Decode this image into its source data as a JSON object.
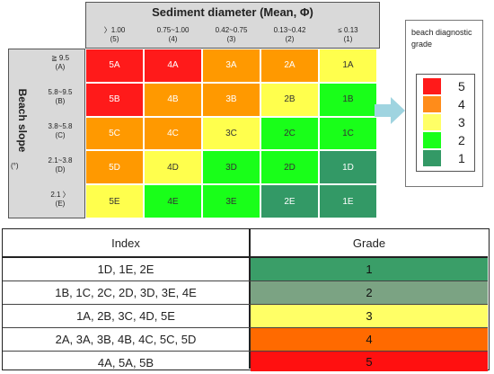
{
  "matrix": {
    "title": "Sediment diameter (Mean, Φ)",
    "side_title": "Beach slope",
    "side_unit": "(°)",
    "columns": [
      {
        "range": "〉1.00",
        "code": "(5)"
      },
      {
        "range": "0.75~1.00",
        "code": "(4)"
      },
      {
        "range": "0.42~0.75",
        "code": "(3)"
      },
      {
        "range": "0.13~0.42",
        "code": "(2)"
      },
      {
        "range": "≤ 0.13",
        "code": "(1)"
      }
    ],
    "rows": [
      {
        "range": "≧ 9.5",
        "code": "(A)",
        "cells": [
          "5A",
          "4A",
          "3A",
          "2A",
          "1A"
        ]
      },
      {
        "range": "5.8~9.5",
        "code": "(B)",
        "cells": [
          "5B",
          "4B",
          "3B",
          "2B",
          "1B"
        ]
      },
      {
        "range": "3.8~5.8",
        "code": "(C)",
        "cells": [
          "5C",
          "4C",
          "3C",
          "2C",
          "1C"
        ]
      },
      {
        "range": "2.1~3.8",
        "code": "(D)",
        "cells": [
          "5D",
          "4D",
          "3D",
          "2D",
          "1D"
        ]
      },
      {
        "range": "2.1 〉",
        "code": "(E)",
        "cells": [
          "5E",
          "4E",
          "3E",
          "2E",
          "1E"
        ]
      }
    ],
    "grades": [
      [
        5,
        5,
        4,
        4,
        3
      ],
      [
        5,
        4,
        4,
        3,
        2
      ],
      [
        4,
        4,
        3,
        2,
        2
      ],
      [
        4,
        3,
        2,
        2,
        1
      ],
      [
        3,
        2,
        2,
        1,
        1
      ]
    ],
    "grade_colors": {
      "5": "#ff1a1a",
      "4": "#ff9900",
      "3": "#ffff4d",
      "2": "#19ff19",
      "1": "#339966"
    }
  },
  "legend": {
    "title": "beach diagnostic grade",
    "items": [
      {
        "label": "5",
        "color": "#ff1a1a"
      },
      {
        "label": "4",
        "color": "#ff8c1a"
      },
      {
        "label": "3",
        "color": "#ffff66"
      },
      {
        "label": "2",
        "color": "#19ff19"
      },
      {
        "label": "1",
        "color": "#339966"
      }
    ]
  },
  "table": {
    "header_index": "Index",
    "header_grade": "Grade",
    "rows": [
      {
        "index": "1D, 1E, 2E",
        "grade": "1",
        "color": "#3a9e68"
      },
      {
        "index": "1B, 1C, 2C, 2D, 3D, 3E, 4E",
        "grade": "2",
        "color": "#7ba383"
      },
      {
        "index": "1A, 2B, 3C, 4D, 5E",
        "grade": "3",
        "color": "#ffff66"
      },
      {
        "index": "2A, 3A, 3B, 4B, 4C, 5C, 5D",
        "grade": "4",
        "color": "#ff6a00"
      },
      {
        "index": "4A, 5A, 5B",
        "grade": "5",
        "color": "#ff1010"
      }
    ]
  }
}
